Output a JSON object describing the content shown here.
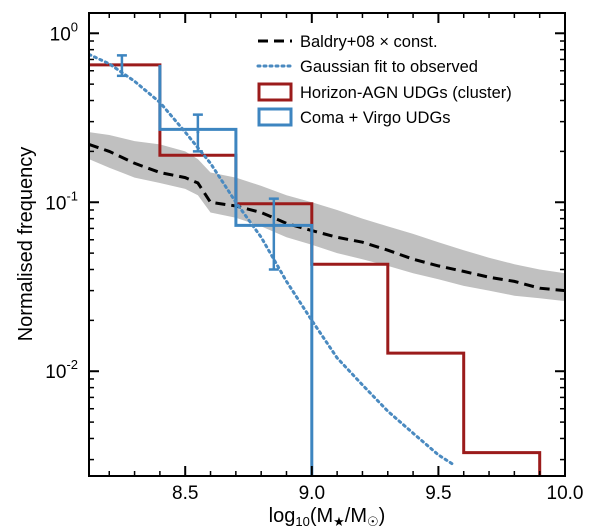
{
  "chart_data": {
    "type": "line",
    "xlabel": "log10(M★/M☉)",
    "ylabel": "Normalised frequency",
    "xlim": [
      8.12,
      10.0
    ],
    "ylim_log10": [
      -2.62,
      0.12
    ],
    "yscale": "log",
    "xticks": [
      8.5,
      9.0,
      9.5,
      10.0
    ],
    "xtick_labels": [
      "8.5",
      "9.0",
      "9.5",
      "10.0"
    ],
    "yticks": [
      {
        "base": "10",
        "exp": "0",
        "value": 1
      },
      {
        "base": "10",
        "exp": "-1",
        "value": 0.1
      },
      {
        "base": "10",
        "exp": "-2",
        "value": 0.01
      }
    ],
    "legend_position": "top-right",
    "series": [
      {
        "name": "Baldry+08 × const.",
        "kind": "dashed-line",
        "color": "#000000",
        "x": [
          8.12,
          8.2,
          8.3,
          8.4,
          8.5,
          8.55,
          8.6,
          8.7,
          8.8,
          8.9,
          9.0,
          9.1,
          9.2,
          9.3,
          9.4,
          9.5,
          9.6,
          9.7,
          9.8,
          9.9,
          10.0
        ],
        "y": [
          0.22,
          0.2,
          0.17,
          0.15,
          0.14,
          0.13,
          0.1,
          0.095,
          0.087,
          0.075,
          0.068,
          0.062,
          0.058,
          0.052,
          0.046,
          0.042,
          0.039,
          0.036,
          0.034,
          0.031,
          0.03
        ],
        "band_lower": [
          0.18,
          0.16,
          0.14,
          0.13,
          0.12,
          0.11,
          0.087,
          0.081,
          0.072,
          0.062,
          0.056,
          0.05,
          0.046,
          0.042,
          0.038,
          0.035,
          0.032,
          0.03,
          0.028,
          0.027,
          0.026
        ],
        "band_upper": [
          0.26,
          0.25,
          0.23,
          0.22,
          0.2,
          0.18,
          0.15,
          0.14,
          0.125,
          0.11,
          0.1,
          0.09,
          0.08,
          0.072,
          0.065,
          0.058,
          0.052,
          0.047,
          0.043,
          0.04,
          0.038
        ],
        "band_color": "#c0c0c0"
      },
      {
        "name": "Gaussian fit to observed",
        "kind": "dotted-line",
        "color": "#4a8ac0",
        "x": [
          8.12,
          8.2,
          8.3,
          8.4,
          8.5,
          8.6,
          8.7,
          8.8,
          8.9,
          9.0,
          9.1,
          9.2,
          9.3,
          9.4,
          9.5,
          9.56
        ],
        "y": [
          0.75,
          0.66,
          0.52,
          0.39,
          0.26,
          0.17,
          0.1,
          0.062,
          0.034,
          0.02,
          0.012,
          0.0083,
          0.0058,
          0.0043,
          0.0032,
          0.0028
        ]
      },
      {
        "name": "Horizon-AGN UDGs (cluster)",
        "kind": "step",
        "color": "#9b1b1b",
        "edges": [
          8.12,
          8.4,
          8.7,
          9.0,
          9.3,
          9.6,
          9.9
        ],
        "values": [
          0.65,
          0.19,
          0.098,
          0.043,
          0.0128,
          0.0033
        ]
      },
      {
        "name": "Coma + Virgo UDGs",
        "kind": "step",
        "color": "#3d85c0",
        "edges": [
          8.4,
          8.7,
          9.0
        ],
        "values": [
          0.27,
          0.073
        ],
        "drop_to_axis_at": 9.0,
        "error_bars": [
          {
            "x": 8.25,
            "y": 0.65,
            "low": 0.56,
            "high": 0.74
          },
          {
            "x": 8.55,
            "y": 0.26,
            "low": 0.2,
            "high": 0.33
          },
          {
            "x": 8.85,
            "y": 0.072,
            "low": 0.04,
            "high": 0.105
          }
        ]
      }
    ]
  }
}
